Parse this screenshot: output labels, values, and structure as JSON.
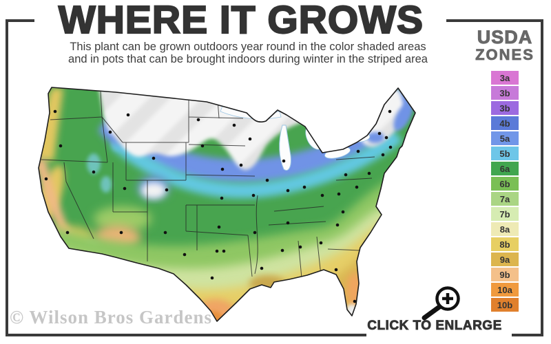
{
  "header": {
    "title": "WHERE IT GROWS",
    "subtitle_line1": "This plant can be grown outdoors year round in the color shaded areas",
    "subtitle_line2": "and in pots that can be brought indoors during winter in the striped area"
  },
  "legend": {
    "title_line1": "USDA",
    "title_line2": "ZONES",
    "zones": [
      {
        "label": "3a",
        "color": "#d976d3"
      },
      {
        "label": "3b",
        "color": "#c77ad9"
      },
      {
        "label": "3b",
        "color": "#9c6ae0"
      },
      {
        "label": "4b",
        "color": "#5b7ad8"
      },
      {
        "label": "5a",
        "color": "#7196e8"
      },
      {
        "label": "5b",
        "color": "#6ec6e8"
      },
      {
        "label": "6a",
        "color": "#41a64f"
      },
      {
        "label": "6b",
        "color": "#7abf55"
      },
      {
        "label": "7a",
        "color": "#aad584"
      },
      {
        "label": "7b",
        "color": "#d6ecb2"
      },
      {
        "label": "8a",
        "color": "#eeeab5"
      },
      {
        "label": "8b",
        "color": "#e7cf63"
      },
      {
        "label": "9a",
        "color": "#dcb54e"
      },
      {
        "label": "9b",
        "color": "#f4c08a"
      },
      {
        "label": "10a",
        "color": "#f09a3e"
      },
      {
        "label": "10b",
        "color": "#e0802d"
      }
    ]
  },
  "map": {
    "description": "United States USDA plant hardiness zone map with color shaded zones, striped overwinter-indoors area in the north-central region, state borders and city dots"
  },
  "watermark": {
    "text": "© Wilson Bros Gardens"
  },
  "footer": {
    "enlarge_label": "CLICK TO ENLARGE",
    "magnifier_icon": "magnifying-glass-plus"
  },
  "colors": {
    "frame": "#3a3a3a",
    "title_text": "#333333",
    "legend_title_text": "#686868",
    "watermark_text": "#c6c6c6",
    "striped_area_stripe": "#e3e3e3"
  }
}
